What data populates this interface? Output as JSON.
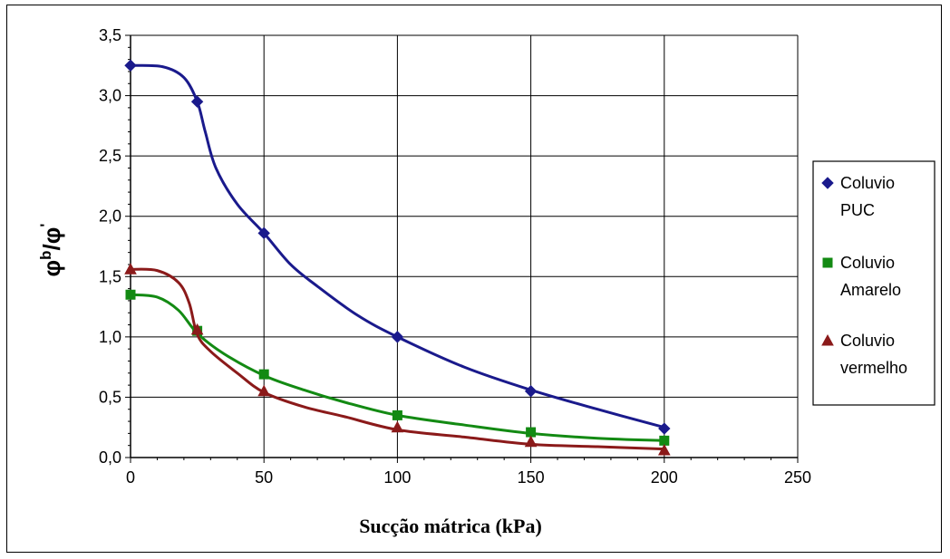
{
  "chart_data": {
    "type": "line",
    "xlabel": "Sucção mátrica (kPa)",
    "ylabel": {
      "base": "φ",
      "sup1": "b",
      "sep": "/",
      "sup2": "'"
    },
    "xlim": [
      0,
      250
    ],
    "ylim": [
      0,
      3.5
    ],
    "xticks": [
      0,
      50,
      100,
      150,
      200,
      250
    ],
    "yticks": [
      0,
      0.5,
      1,
      1.5,
      2,
      2.5,
      3,
      3.5
    ],
    "xtick_labels": [
      "0",
      "50",
      "100",
      "150",
      "200",
      "250"
    ],
    "ytick_labels": [
      "0,0",
      "0,5",
      "1,0",
      "1,5",
      "2,0",
      "2,5",
      "3,0",
      "3,5"
    ],
    "grid": true,
    "legend_position": "right",
    "series": [
      {
        "name": "Coluvio PUC",
        "legend_lines": [
          "Coluvio",
          "PUC"
        ],
        "color": "#1a1a8c",
        "marker": "diamond",
        "x": [
          0,
          25,
          50,
          100,
          150,
          200
        ],
        "y": [
          3.25,
          2.95,
          1.86,
          1.0,
          0.55,
          0.24
        ],
        "curve": [
          [
            0,
            3.25
          ],
          [
            12,
            3.24
          ],
          [
            20,
            3.15
          ],
          [
            25,
            2.95
          ],
          [
            28,
            2.7
          ],
          [
            32,
            2.4
          ],
          [
            40,
            2.1
          ],
          [
            50,
            1.86
          ],
          [
            60,
            1.6
          ],
          [
            70,
            1.42
          ],
          [
            85,
            1.18
          ],
          [
            100,
            1.0
          ],
          [
            125,
            0.75
          ],
          [
            150,
            0.56
          ],
          [
            175,
            0.4
          ],
          [
            200,
            0.25
          ]
        ]
      },
      {
        "name": "Coluvio Amarelo",
        "legend_lines": [
          "Coluvio",
          "Amarelo"
        ],
        "color": "#138a13",
        "marker": "square",
        "x": [
          0,
          25,
          50,
          100,
          150,
          200
        ],
        "y": [
          1.35,
          1.05,
          0.69,
          0.35,
          0.21,
          0.14
        ],
        "curve": [
          [
            0,
            1.35
          ],
          [
            10,
            1.33
          ],
          [
            18,
            1.22
          ],
          [
            25,
            1.03
          ],
          [
            35,
            0.86
          ],
          [
            50,
            0.68
          ],
          [
            65,
            0.56
          ],
          [
            80,
            0.46
          ],
          [
            100,
            0.35
          ],
          [
            125,
            0.27
          ],
          [
            150,
            0.2
          ],
          [
            175,
            0.16
          ],
          [
            200,
            0.14
          ]
        ]
      },
      {
        "name": "Coluvio vermelho",
        "legend_lines": [
          "Coluvio",
          "vermelho"
        ],
        "color": "#8b1a1a",
        "marker": "triangle",
        "x": [
          0,
          25,
          50,
          100,
          150,
          200
        ],
        "y": [
          1.56,
          1.06,
          0.55,
          0.25,
          0.13,
          0.06
        ],
        "curve": [
          [
            0,
            1.56
          ],
          [
            10,
            1.55
          ],
          [
            18,
            1.45
          ],
          [
            22,
            1.28
          ],
          [
            25,
            1.02
          ],
          [
            30,
            0.88
          ],
          [
            40,
            0.7
          ],
          [
            50,
            0.54
          ],
          [
            65,
            0.42
          ],
          [
            80,
            0.34
          ],
          [
            100,
            0.23
          ],
          [
            125,
            0.17
          ],
          [
            150,
            0.11
          ],
          [
            175,
            0.09
          ],
          [
            200,
            0.07
          ]
        ]
      }
    ]
  }
}
